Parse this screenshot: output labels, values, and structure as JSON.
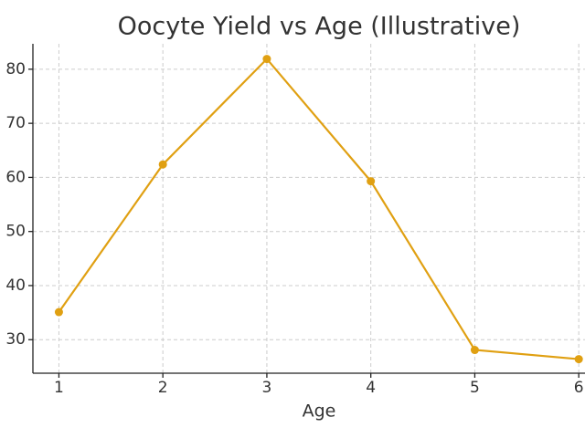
{
  "chart_data": {
    "type": "line",
    "title": "Oocyte Yield vs Age (Illustrative)",
    "x_label": "Age",
    "x": [
      1,
      2,
      3,
      4,
      5,
      6
    ],
    "series": [
      {
        "color": "#e0a012",
        "values": [
          35.1,
          62.4,
          81.9,
          59.3,
          28.1,
          26.4
        ]
      }
    ],
    "xlim": [
      0.75,
      6.06
    ],
    "xticks": [
      1,
      2,
      3,
      4,
      5,
      6
    ],
    "ylim": [
      23.8,
      84.7
    ],
    "yticks": [
      30,
      40,
      50,
      60,
      70,
      80
    ],
    "grid": true
  }
}
